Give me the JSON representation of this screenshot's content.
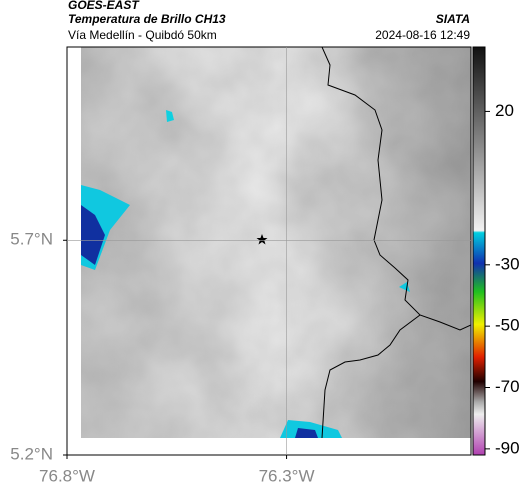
{
  "header": {
    "source": "GOES-EAST",
    "title": "Temperatura de Brillo CH13",
    "subtitle": "Vía Medellín - Quibdó 50km",
    "agency": "SIATA",
    "datetime": "2024-08-16 12:49"
  },
  "map": {
    "xlim": [
      -76.8,
      -75.88
    ],
    "ylim": [
      5.2,
      6.15
    ],
    "xticks": [
      {
        "value": -76.8,
        "label": "76.8°W"
      },
      {
        "value": -76.3,
        "label": "76.3°W"
      }
    ],
    "yticks": [
      {
        "value": 5.7,
        "label": "5.7°N"
      },
      {
        "value": 5.2,
        "label": "5.2°N"
      }
    ]
  },
  "colorbar": {
    "lim": [
      -92,
      41
    ],
    "ticks": [
      20,
      -30,
      -50,
      -70,
      -90
    ]
  }
}
